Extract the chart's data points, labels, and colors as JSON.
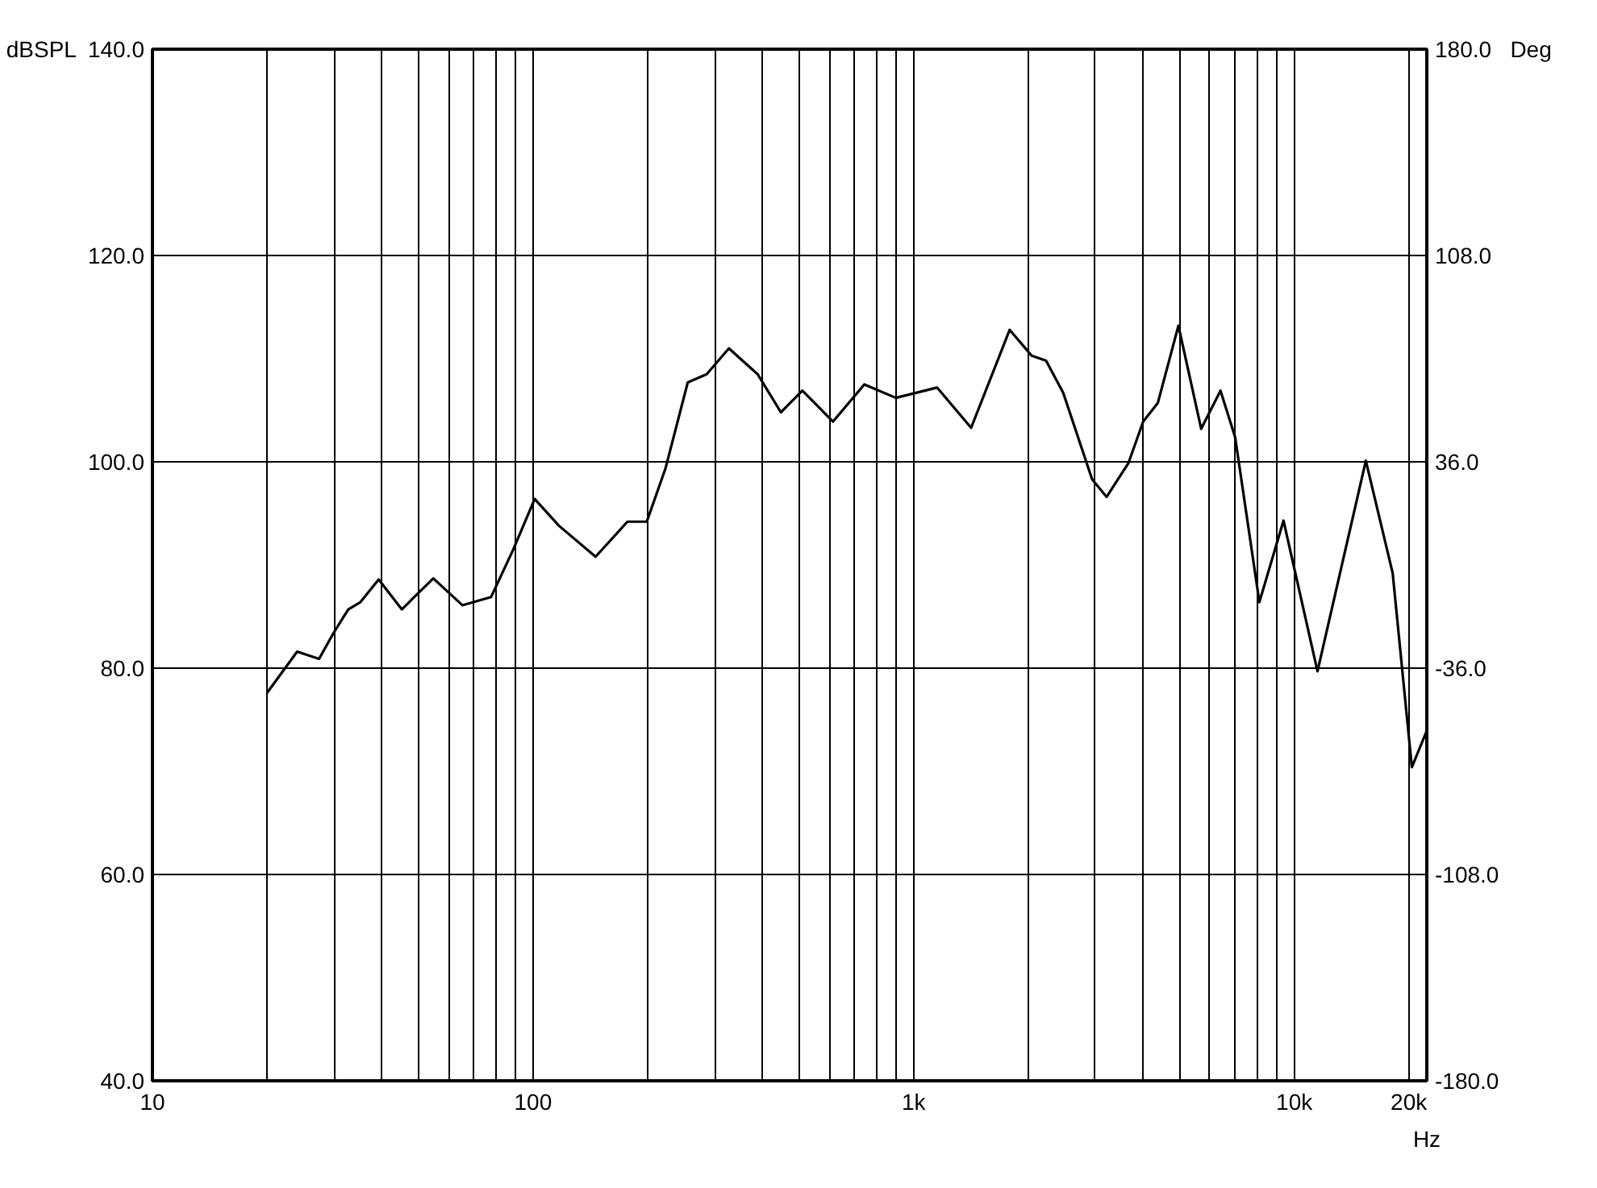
{
  "chart_data": {
    "type": "line",
    "xlabel": "Hz",
    "ylabel": "dBSPL",
    "y2label": "Deg",
    "log": "x",
    "grid": true,
    "marker": "none",
    "line_style": "solid",
    "xlim": [
      10,
      22300
    ],
    "ylim": [
      40,
      140
    ],
    "y2lim": [
      -180,
      180
    ],
    "xticks": [
      10,
      {
        "value": 20,
        "label": null
      },
      {
        "value": 30,
        "label": null
      },
      {
        "value": 40,
        "label": null
      },
      {
        "value": 50,
        "label": null
      },
      {
        "value": 60,
        "label": null
      },
      {
        "value": 70,
        "label": null
      },
      {
        "value": 80,
        "label": null
      },
      {
        "value": 90,
        "label": null
      },
      100,
      {
        "value": 200,
        "label": null
      },
      {
        "value": 300,
        "label": null
      },
      {
        "value": 400,
        "label": null
      },
      {
        "value": 500,
        "label": null
      },
      {
        "value": 600,
        "label": null
      },
      {
        "value": 700,
        "label": null
      },
      {
        "value": 800,
        "label": null
      },
      {
        "value": 900,
        "label": null
      },
      {
        "value": 1000,
        "label": "1k"
      },
      {
        "value": 2000,
        "label": null
      },
      {
        "value": 3000,
        "label": null
      },
      {
        "value": 4000,
        "label": null
      },
      {
        "value": 5000,
        "label": null
      },
      {
        "value": 6000,
        "label": null
      },
      {
        "value": 7000,
        "label": null
      },
      {
        "value": 8000,
        "label": null
      },
      {
        "value": 9000,
        "label": null
      },
      {
        "value": 10000,
        "label": "10k"
      },
      {
        "value": 20000,
        "label": "20k"
      }
    ],
    "yticks": [
      {
        "value": 40,
        "label": "40.0"
      },
      {
        "value": 60,
        "label": "60.0"
      },
      {
        "value": 80,
        "label": "80.0"
      },
      {
        "value": 100,
        "label": "100.0"
      },
      {
        "value": 120,
        "label": "120.0"
      },
      {
        "value": 140,
        "label": "140.0"
      }
    ],
    "y2ticks": [
      {
        "value": -180,
        "label": "-180.0"
      },
      {
        "value": -108,
        "label": "-108.0"
      },
      {
        "value": -36,
        "label": "-36.0"
      },
      {
        "value": 36,
        "label": "36.0"
      },
      {
        "value": 108,
        "label": "108.0"
      },
      {
        "value": 180,
        "label": "180.0"
      }
    ],
    "x": [
      20.0,
      24.0,
      27.4,
      29.9,
      32.7,
      35.2,
      39.3,
      45.2,
      54.7,
      65.2,
      77.6,
      88.7,
      101,
      117,
      146,
      177,
      199,
      223,
      255,
      286,
      327,
      389,
      448,
      510,
      614,
      742,
      898,
      1152,
      1416,
      1788,
      2041,
      2228,
      2471,
      2944,
      3213,
      3669,
      4010,
      4380,
      4962,
      5695,
      6400,
      6992,
      8098,
      9370,
      11510,
      15420,
      18140,
      20370,
      22280
    ],
    "series": [
      {
        "color": "#000000",
        "values": [
          77.6,
          81.6,
          80.9,
          83.4,
          85.7,
          86.4,
          88.6,
          85.7,
          88.7,
          86.1,
          86.9,
          91.5,
          96.4,
          93.8,
          90.8,
          94.2,
          94.2,
          99.4,
          107.7,
          108.5,
          111.0,
          108.5,
          104.8,
          106.9,
          103.9,
          107.5,
          106.2,
          107.2,
          103.3,
          112.8,
          110.3,
          109.8,
          106.7,
          98.3,
          96.6,
          99.9,
          103.9,
          105.7,
          113.2,
          103.2,
          106.9,
          102.4,
          86.4,
          94.3,
          79.7,
          100.1,
          89.2,
          70.4,
          73.9
        ]
      }
    ]
  }
}
